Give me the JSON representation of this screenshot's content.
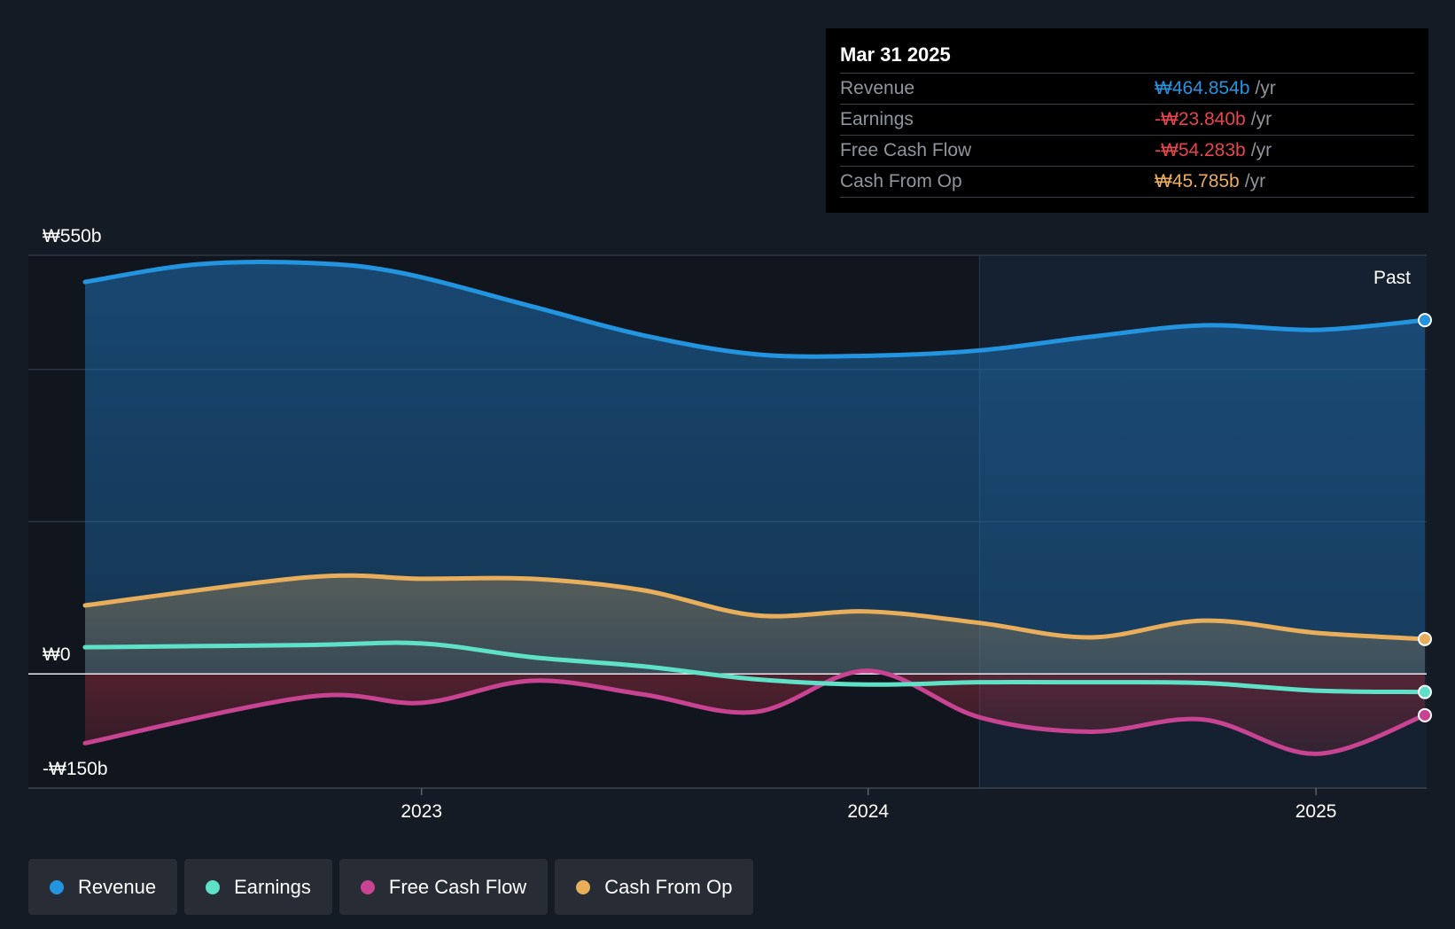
{
  "chart_data": {
    "type": "area",
    "y_tick_labels": [
      "₩550b",
      "₩0",
      "-₩150b"
    ],
    "ylim": [
      -150,
      550
    ],
    "x_tick_labels": [
      "2023",
      "2024",
      "2025"
    ],
    "past_label": "Past",
    "series": [
      {
        "name": "Revenue",
        "color": "#2394df",
        "points": [
          [
            "2022-04-01",
            515
          ],
          [
            "2022-07-01",
            538
          ],
          [
            "2022-10-01",
            540
          ],
          [
            "2022-12-15",
            527
          ],
          [
            "2023-04-01",
            483
          ],
          [
            "2023-07-01",
            445
          ],
          [
            "2023-10-01",
            420
          ],
          [
            "2024-01-01",
            418
          ],
          [
            "2024-04-01",
            425
          ],
          [
            "2024-07-01",
            443
          ],
          [
            "2024-10-01",
            458
          ],
          [
            "2025-01-01",
            452
          ],
          [
            "2025-03-31",
            464.854
          ]
        ]
      },
      {
        "name": "Earnings",
        "color": "#5ee1c7",
        "points": [
          [
            "2022-04-01",
            35
          ],
          [
            "2022-10-01",
            38
          ],
          [
            "2023-01-01",
            40
          ],
          [
            "2023-04-01",
            22
          ],
          [
            "2023-07-01",
            10
          ],
          [
            "2023-10-01",
            -7
          ],
          [
            "2024-01-01",
            -14
          ],
          [
            "2024-04-01",
            -11
          ],
          [
            "2024-07-01",
            -11
          ],
          [
            "2024-10-01",
            -12
          ],
          [
            "2025-01-01",
            -22
          ],
          [
            "2025-03-31",
            -23.84
          ]
        ]
      },
      {
        "name": "Free Cash Flow",
        "color": "#c84391",
        "points": [
          [
            "2022-04-01",
            -91
          ],
          [
            "2022-10-01",
            -30
          ],
          [
            "2023-01-01",
            -38
          ],
          [
            "2023-04-01",
            -9
          ],
          [
            "2023-07-01",
            -27
          ],
          [
            "2023-10-01",
            -50
          ],
          [
            "2024-01-01",
            4
          ],
          [
            "2024-04-01",
            -57
          ],
          [
            "2024-07-01",
            -76
          ],
          [
            "2024-10-01",
            -60
          ],
          [
            "2025-01-01",
            -105
          ],
          [
            "2025-03-31",
            -54.283
          ]
        ]
      },
      {
        "name": "Cash From Op",
        "color": "#e8ae5b",
        "points": [
          [
            "2022-04-01",
            90
          ],
          [
            "2022-10-01",
            127
          ],
          [
            "2023-01-01",
            125
          ],
          [
            "2023-04-01",
            125
          ],
          [
            "2023-07-01",
            110
          ],
          [
            "2023-10-01",
            77
          ],
          [
            "2024-01-01",
            82
          ],
          [
            "2024-04-01",
            67
          ],
          [
            "2024-07-01",
            48
          ],
          [
            "2024-10-01",
            70
          ],
          [
            "2025-01-01",
            54
          ],
          [
            "2025-03-31",
            45.785
          ]
        ]
      }
    ]
  },
  "tooltip": {
    "date": "Mar 31 2025",
    "rows": [
      {
        "label": "Revenue",
        "value": "₩464.854b",
        "unit": "/yr",
        "color": "#2394df"
      },
      {
        "label": "Earnings",
        "value": "-₩23.840b",
        "unit": "/yr",
        "color": "#e8454e"
      },
      {
        "label": "Free Cash Flow",
        "value": "-₩54.283b",
        "unit": "/yr",
        "color": "#e8454e"
      },
      {
        "label": "Cash From Op",
        "value": "₩45.785b",
        "unit": "/yr",
        "color": "#e8ae5b"
      }
    ]
  },
  "legend": [
    {
      "label": "Revenue",
      "color": "#2394df"
    },
    {
      "label": "Earnings",
      "color": "#5ee1c7"
    },
    {
      "label": "Free Cash Flow",
      "color": "#c84391"
    },
    {
      "label": "Cash From Op",
      "color": "#e8ae5b"
    }
  ]
}
